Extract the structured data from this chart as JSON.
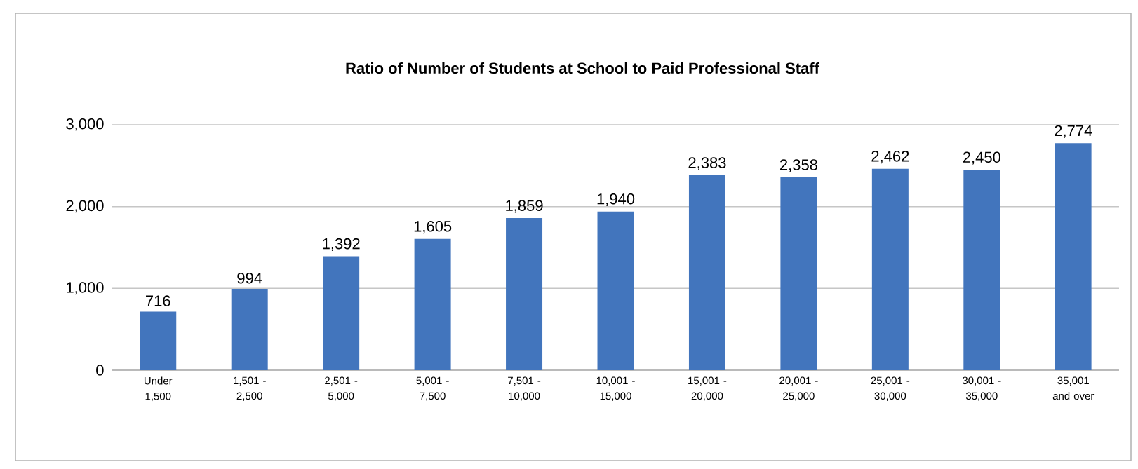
{
  "chart_data": {
    "type": "bar",
    "title": "Ratio of Number of Students at School to Paid Professional Staff",
    "categories": [
      "Under 1,500",
      "1,501 - 2,500",
      "2,501 - 5,000",
      "5,001 - 7,500",
      "7,501 - 10,000",
      "10,001 - 15,000",
      "15,001 - 20,000",
      "20,001 - 25,000",
      "25,001 - 30,000",
      "30,001 - 35,000",
      "35,001 and over"
    ],
    "values": [
      716,
      994,
      1392,
      1605,
      1859,
      1940,
      2383,
      2358,
      2462,
      2450,
      2774
    ],
    "value_labels": [
      "716",
      "994",
      "1,392",
      "1,605",
      "1,859",
      "1,940",
      "2,383",
      "2,358",
      "2,462",
      "2,450",
      "2,774"
    ],
    "color": "#4275bd",
    "ylim": [
      0,
      3000
    ],
    "yticks": [
      0,
      {
        "value": 1000,
        "label": "1,000"
      },
      {
        "value": 2000,
        "label": "2,000"
      },
      {
        "value": 3000,
        "label": "3,000"
      }
    ],
    "grid": "y"
  }
}
